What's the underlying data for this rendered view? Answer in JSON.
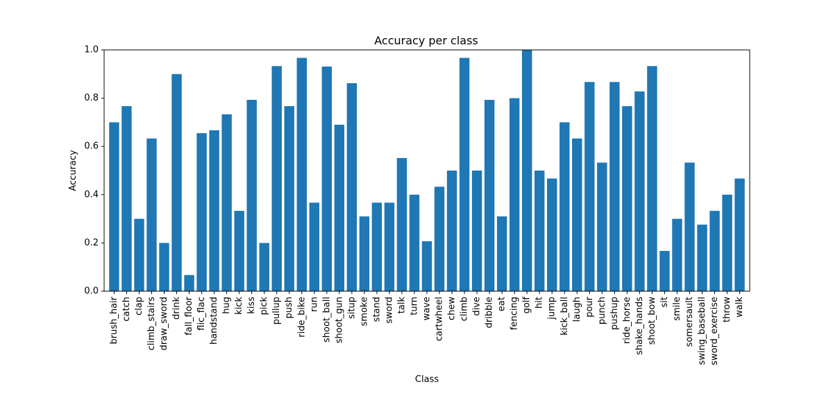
{
  "chart_data": {
    "type": "bar",
    "title": "Accuracy per class",
    "xlabel": "Class",
    "ylabel": "Accuracy",
    "ylim": [
      0,
      1.0
    ],
    "yticks": [
      "0.0",
      "0.2",
      "0.4",
      "0.6",
      "0.8",
      "1.0"
    ],
    "grid": false,
    "legend": "none",
    "bar_color": "#1f77b4",
    "categories": [
      "brush_hair",
      "catch",
      "clap",
      "climb_stairs",
      "draw_sword",
      "drink",
      "fall_floor",
      "flic_flac",
      "handstand",
      "hug",
      "kick",
      "kiss",
      "pick",
      "pullup",
      "push",
      "ride_bike",
      "run",
      "shoot_ball",
      "shoot_gun",
      "situp",
      "smoke",
      "stand",
      "sword",
      "talk",
      "turn",
      "wave",
      "cartwheel",
      "chew",
      "climb",
      "dive",
      "dribble",
      "eat",
      "fencing",
      "golf",
      "hit",
      "jump",
      "kick_ball",
      "laugh",
      "pour",
      "punch",
      "pushup",
      "ride_horse",
      "shake_hands",
      "shoot_bow",
      "sit",
      "smile",
      "somersault",
      "swing_baseball",
      "sword_exercise",
      "throw",
      "walk"
    ],
    "values": [
      0.7,
      0.767,
      0.3,
      0.633,
      0.2,
      0.9,
      0.067,
      0.655,
      0.667,
      0.733,
      0.333,
      0.793,
      0.2,
      0.933,
      0.767,
      0.967,
      0.367,
      0.931,
      0.69,
      0.862,
      0.31,
      0.367,
      0.367,
      0.552,
      0.4,
      0.207,
      0.433,
      0.5,
      0.967,
      0.5,
      0.793,
      0.31,
      0.8,
      1.0,
      0.5,
      0.467,
      0.7,
      0.633,
      0.867,
      0.533,
      0.867,
      0.767,
      0.828,
      0.933,
      0.167,
      0.3,
      0.533,
      0.276,
      0.333,
      0.4,
      0.467
    ]
  }
}
